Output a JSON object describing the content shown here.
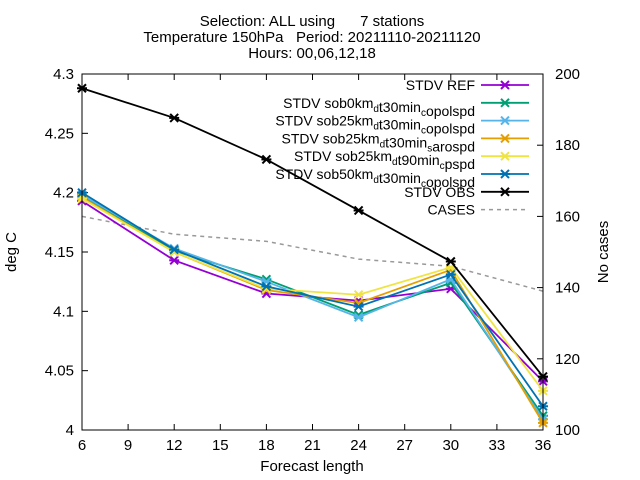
{
  "chart_data": {
    "type": "line",
    "title_lines": [
      "Selection: ALL using      7 stations",
      "Temperature 150hPa   Period: 20211110-20211120",
      "Hours: 00,06,12,18"
    ],
    "xlabel": "Forecast length",
    "ylabel": "deg C",
    "y2label": "No cases",
    "xlim": [
      6,
      36
    ],
    "ylim": [
      4.0,
      4.3
    ],
    "y2lim": [
      100,
      200
    ],
    "xticks": [
      "6",
      "9",
      "12",
      "15",
      "18",
      "21",
      "24",
      "27",
      "30",
      "33",
      "36"
    ],
    "yticks": [
      "4",
      "4.05",
      "4.1",
      "4.15",
      "4.2",
      "4.25",
      "4.3"
    ],
    "y2ticks": [
      "100",
      "120",
      "140",
      "160",
      "180",
      "200"
    ],
    "legend_position": "top-right",
    "x": [
      6,
      12,
      18,
      24,
      30,
      36
    ],
    "series": [
      {
        "name": "STDV REF",
        "color": "#9400d3",
        "values": [
          4.193,
          4.143,
          4.115,
          4.109,
          4.119,
          4.041
        ]
      },
      {
        "name": "STDV sob0km_d t30min_c opolspd",
        "color": "#009e73",
        "values": [
          4.197,
          4.151,
          4.127,
          4.097,
          4.124,
          4.012
        ]
      },
      {
        "name": "STDV sob25km_d t30min_c opolspd",
        "color": "#56b4e9",
        "values": [
          4.198,
          4.153,
          4.125,
          4.095,
          4.127,
          4.009
        ]
      },
      {
        "name": "STDV sob25km_d t30min_s arospd",
        "color": "#e69f00",
        "values": [
          4.196,
          4.15,
          4.118,
          4.107,
          4.135,
          4.006
        ]
      },
      {
        "name": "STDV sob25km_d t90min_c pspd",
        "color": "#f0e442",
        "values": [
          4.195,
          4.15,
          4.119,
          4.114,
          4.137,
          4.033
        ]
      },
      {
        "name": "STDV sob50km_d t30min_c opolspd",
        "color": "#0072b2",
        "values": [
          4.2,
          4.152,
          4.121,
          4.104,
          4.131,
          4.02
        ]
      },
      {
        "name": "STDV OBS",
        "color": "#000000",
        "values": [
          4.288,
          4.263,
          4.228,
          4.185,
          4.142,
          4.045
        ]
      }
    ],
    "cases": {
      "name": "CASES",
      "color": "#999999",
      "values": [
        160,
        155,
        153,
        148,
        146,
        139
      ]
    }
  }
}
